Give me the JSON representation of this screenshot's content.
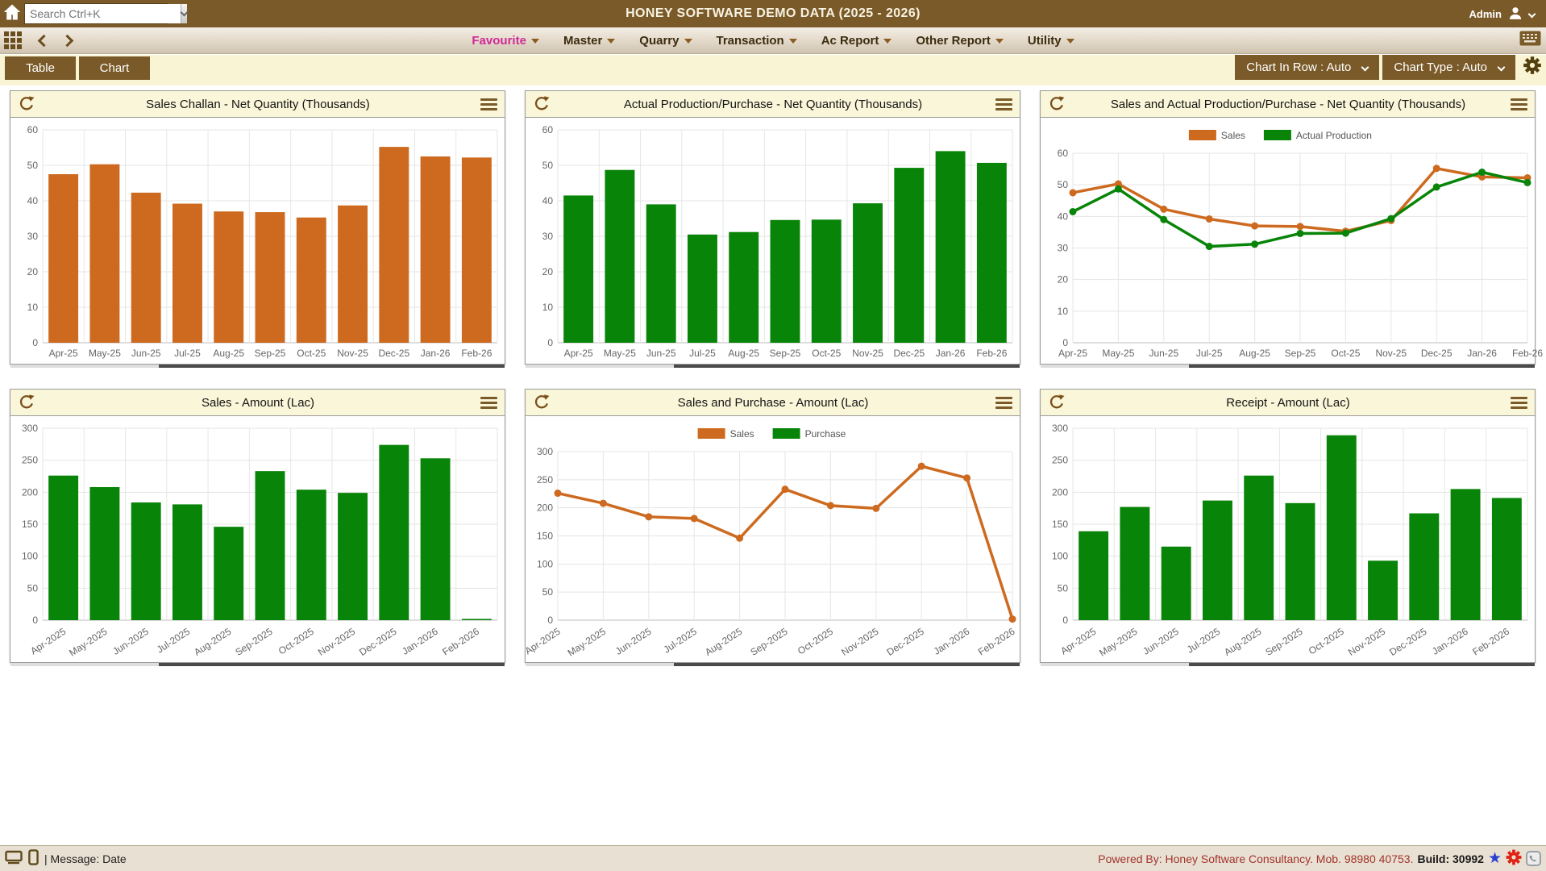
{
  "topbar": {
    "search_placeholder": "Search Ctrl+K",
    "title": "HONEY SOFTWARE DEMO DATA  (2025 - 2026)",
    "user": "Admin"
  },
  "menubar": {
    "items": [
      {
        "label": "Favourite"
      },
      {
        "label": "Master"
      },
      {
        "label": "Quarry"
      },
      {
        "label": "Transaction"
      },
      {
        "label": "Ac Report"
      },
      {
        "label": "Other Report"
      },
      {
        "label": "Utility"
      }
    ]
  },
  "toolbar": {
    "table_label": "Table",
    "chart_label": "Chart",
    "chart_in_row_label": "Chart In Row : Auto",
    "chart_type_label": "Chart Type : Auto"
  },
  "statusbar": {
    "message": "| Message: Date",
    "powered": "Powered By: Honey Software Consultancy. Mob. 98980 40753.",
    "build": "Build: 30992"
  },
  "colors": {
    "topbar_brown": "#7a5a28",
    "cream": "#f8f4d4",
    "panel_header_cream": "#faf6d9",
    "favourite_pink": "#d02997",
    "sales_orange": "#cd6a1f",
    "production_green": "#088408",
    "powered_maroon": "#a2332c",
    "star_blue": "#2a3fd0",
    "gear_red": "#e02314"
  },
  "icons": {
    "topbar": [
      "home-icon",
      "chevron-down-icon",
      "user-icon"
    ],
    "menubar": [
      "app-grid-icon",
      "arrow-back-icon",
      "arrow-forward-icon",
      "keyboard-icon"
    ],
    "toolbar": [
      "gear-icon"
    ],
    "panel": [
      "refresh-icon",
      "hamburger-menu-icon"
    ],
    "statusbar": [
      "monitor-icon",
      "phone-icon",
      "star-icon",
      "gear-icon",
      "whatsapp-icon"
    ]
  },
  "chart_data": [
    {
      "type": "bar",
      "title": "Sales Challan - Net Quantity (Thousands)",
      "categories": [
        "Apr-25",
        "May-25",
        "Jun-25",
        "Jul-25",
        "Aug-25",
        "Sep-25",
        "Oct-25",
        "Nov-25",
        "Dec-25",
        "Jan-26",
        "Feb-26"
      ],
      "values": [
        47.5,
        50.3,
        42.3,
        39.2,
        37,
        36.8,
        35.3,
        38.7,
        55.2,
        52.5,
        52.2
      ],
      "color": "#cd6a1f",
      "xlabel": "",
      "ylabel": "",
      "ylim": [
        0,
        60
      ],
      "ytick": 10,
      "grid": true,
      "rotated_labels": false,
      "legend": false
    },
    {
      "type": "bar",
      "title": "Actual Production/Purchase - Net Quantity (Thousands)",
      "categories": [
        "Apr-25",
        "May-25",
        "Jun-25",
        "Jul-25",
        "Aug-25",
        "Sep-25",
        "Oct-25",
        "Nov-25",
        "Dec-25",
        "Jan-26",
        "Feb-26"
      ],
      "values": [
        41.5,
        48.7,
        39,
        30.5,
        31.2,
        34.6,
        34.7,
        39.3,
        49.3,
        54,
        50.7
      ],
      "color": "#088408",
      "xlabel": "",
      "ylabel": "",
      "ylim": [
        0,
        60
      ],
      "ytick": 10,
      "grid": true,
      "rotated_labels": false,
      "legend": false
    },
    {
      "type": "line",
      "title": "Sales and Actual Production/Purchase - Net Quantity (Thousands)",
      "categories": [
        "Apr-25",
        "May-25",
        "Jun-25",
        "Jul-25",
        "Aug-25",
        "Sep-25",
        "Oct-25",
        "Nov-25",
        "Dec-25",
        "Jan-26",
        "Feb-26"
      ],
      "series": [
        {
          "name": "Sales",
          "color": "#cd6a1f",
          "values": [
            47.5,
            50.3,
            42.3,
            39.2,
            37,
            36.8,
            35.3,
            38.7,
            55.2,
            52.5,
            52.2
          ]
        },
        {
          "name": "Actual Production",
          "color": "#088408",
          "values": [
            41.5,
            48.7,
            39,
            30.5,
            31.2,
            34.6,
            34.7,
            39.3,
            49.3,
            54,
            50.7
          ]
        }
      ],
      "xlabel": "",
      "ylabel": "",
      "ylim": [
        0,
        60
      ],
      "ytick": 10,
      "grid": true,
      "rotated_labels": false,
      "legend": true,
      "legend_position": "top"
    },
    {
      "type": "bar",
      "title": "Sales - Amount (Lac)",
      "categories": [
        "Apr-2025",
        "May-2025",
        "Jun-2025",
        "Jul-2025",
        "Aug-2025",
        "Sep-2025",
        "Oct-2025",
        "Nov-2025",
        "Dec-2025",
        "Jan-2026",
        "Feb-2026"
      ],
      "values": [
        226,
        208,
        184,
        181,
        146,
        233,
        204,
        199,
        274,
        253,
        2
      ],
      "color": "#088408",
      "xlabel": "",
      "ylabel": "",
      "ylim": [
        0,
        300
      ],
      "ytick": 50,
      "grid": true,
      "rotated_labels": true,
      "legend": false
    },
    {
      "type": "line",
      "title": "Sales and Purchase - Amount (Lac)",
      "categories": [
        "Apr-2025",
        "May-2025",
        "Jun-2025",
        "Jul-2025",
        "Aug-2025",
        "Sep-2025",
        "Oct-2025",
        "Nov-2025",
        "Dec-2025",
        "Jan-2026",
        "Feb-2026"
      ],
      "series": [
        {
          "name": "Sales",
          "color": "#cd6a1f",
          "values": [
            226,
            208,
            184,
            181,
            146,
            233,
            204,
            199,
            274,
            253,
            2
          ]
        },
        {
          "name": "Purchase",
          "color": "#088408",
          "values": []
        }
      ],
      "xlabel": "",
      "ylabel": "",
      "ylim": [
        0,
        300
      ],
      "ytick": 50,
      "grid": true,
      "rotated_labels": true,
      "legend": true,
      "legend_position": "top"
    },
    {
      "type": "bar",
      "title": "Receipt - Amount (Lac)",
      "categories": [
        "Apr-2025",
        "May-2025",
        "Jun-2025",
        "Jul-2025",
        "Aug-2025",
        "Sep-2025",
        "Oct-2025",
        "Nov-2025",
        "Dec-2025",
        "Jan-2026",
        "Feb-2026"
      ],
      "values": [
        139,
        177,
        115,
        187,
        226,
        183,
        289,
        93,
        167,
        205,
        191
      ],
      "color": "#088408",
      "xlabel": "",
      "ylabel": "",
      "ylim": [
        0,
        300
      ],
      "ytick": 50,
      "grid": true,
      "rotated_labels": true,
      "legend": false
    }
  ]
}
